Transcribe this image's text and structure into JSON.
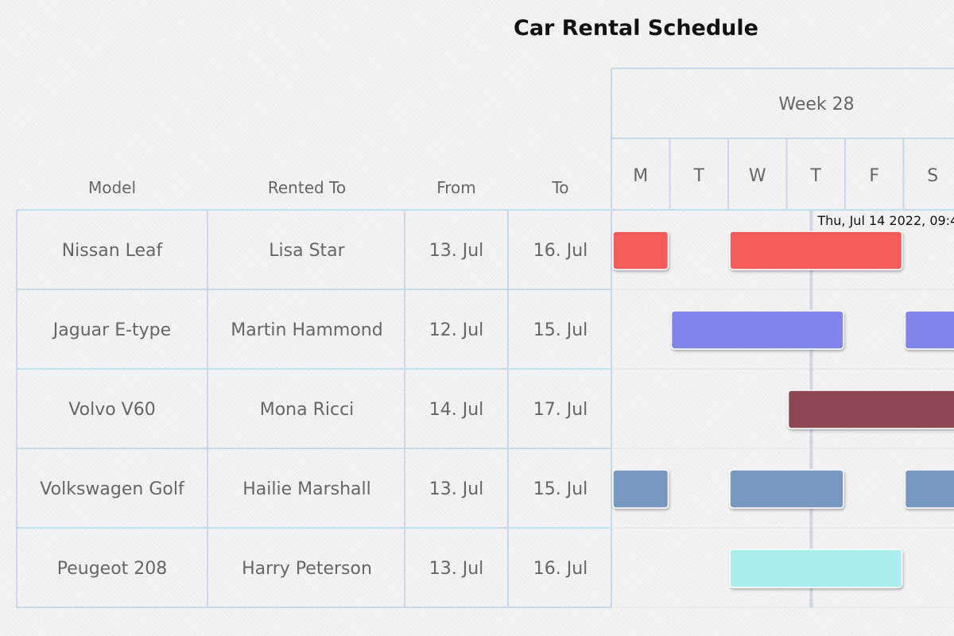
{
  "chart_data": {
    "type": "gantt",
    "title": "Car Rental Schedule",
    "columns": [
      "Model",
      "Rented To",
      "From",
      "To"
    ],
    "week_label": "Week 28",
    "days": [
      "M",
      "T",
      "W",
      "T",
      "F",
      "S"
    ],
    "current_time_label": "Thu, Jul 14 2022, 09:4",
    "current_time_day": 3.42,
    "rows": [
      {
        "model": "Nissan Leaf",
        "rented_to": "Lisa Star",
        "from": "13. Jul",
        "to": "16. Jul",
        "color": "#f45b5b",
        "bookings": [
          {
            "start": 0,
            "end": 1
          },
          {
            "start": 2,
            "end": 5
          }
        ]
      },
      {
        "model": "Jaguar E-type",
        "rented_to": "Martin Hammond",
        "from": "12. Jul",
        "to": "15. Jul",
        "color": "#8085e9",
        "bookings": [
          {
            "start": 1,
            "end": 4
          },
          {
            "start": 5,
            "end": 6.2
          }
        ]
      },
      {
        "model": "Volvo V60",
        "rented_to": "Mona Ricci",
        "from": "14. Jul",
        "to": "17. Jul",
        "color": "#8d4654",
        "bookings": [
          {
            "start": 3,
            "end": 6.2
          }
        ]
      },
      {
        "model": "Volkswagen Golf",
        "rented_to": "Hailie Marshall",
        "from": "13. Jul",
        "to": "15. Jul",
        "color": "#7798bf",
        "bookings": [
          {
            "start": 0,
            "end": 1
          },
          {
            "start": 2,
            "end": 4
          },
          {
            "start": 5,
            "end": 6.2
          }
        ]
      },
      {
        "model": "Peugeot 208",
        "rented_to": "Harry Peterson",
        "from": "13. Jul",
        "to": "16. Jul",
        "color": "#aaeeee",
        "bookings": [
          {
            "start": 2,
            "end": 5
          }
        ]
      }
    ]
  }
}
